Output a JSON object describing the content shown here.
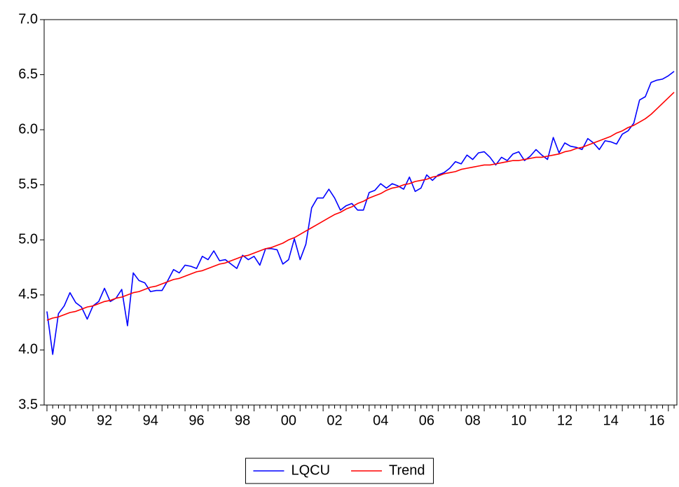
{
  "chart_data": {
    "type": "line",
    "categories": [
      null,
      null,
      "90",
      null,
      null,
      null,
      null,
      null,
      null,
      null,
      "92",
      null,
      null,
      null,
      null,
      null,
      null,
      null,
      "94",
      null,
      null,
      null,
      null,
      null,
      null,
      null,
      "96",
      null,
      null,
      null,
      null,
      null,
      null,
      null,
      "98",
      null,
      null,
      null,
      null,
      null,
      null,
      null,
      "00",
      null,
      null,
      null,
      null,
      null,
      null,
      null,
      "02",
      null,
      null,
      null,
      null,
      null,
      null,
      null,
      "04",
      null,
      null,
      null,
      null,
      null,
      null,
      null,
      "06",
      null,
      null,
      null,
      null,
      null,
      null,
      null,
      "08",
      null,
      null,
      null,
      null,
      null,
      null,
      null,
      "10",
      null,
      null,
      null,
      null,
      null,
      null,
      null,
      "12",
      null,
      null,
      null,
      null,
      null,
      null,
      null,
      "14",
      null,
      null,
      null,
      null,
      null,
      null,
      null,
      "16",
      null,
      null,
      null
    ],
    "series": [
      {
        "name": "LQCU",
        "color": "#0000ff",
        "values": [
          4.35,
          3.96,
          4.33,
          4.4,
          4.52,
          4.43,
          4.39,
          4.28,
          4.4,
          4.44,
          4.56,
          4.44,
          4.47,
          4.55,
          4.22,
          4.7,
          4.63,
          4.61,
          4.53,
          4.54,
          4.54,
          4.63,
          4.73,
          4.7,
          4.77,
          4.76,
          4.74,
          4.85,
          4.82,
          4.9,
          4.81,
          4.82,
          4.78,
          4.74,
          4.86,
          4.82,
          4.85,
          4.77,
          4.92,
          4.92,
          4.91,
          4.78,
          4.82,
          5.01,
          4.82,
          4.96,
          5.29,
          5.38,
          5.38,
          5.46,
          5.38,
          5.27,
          5.31,
          5.33,
          5.27,
          5.27,
          5.43,
          5.45,
          5.51,
          5.47,
          5.51,
          5.49,
          5.46,
          5.57,
          5.44,
          5.47,
          5.59,
          5.54,
          5.59,
          5.61,
          5.65,
          5.71,
          5.69,
          5.77,
          5.73,
          5.79,
          5.8,
          5.75,
          5.68,
          5.75,
          5.72,
          5.78,
          5.8,
          5.72,
          5.76,
          5.82,
          5.77,
          5.73,
          5.93,
          5.79,
          5.88,
          5.85,
          5.84,
          5.82,
          5.92,
          5.88,
          5.82,
          5.9,
          5.89,
          5.87,
          5.96,
          5.99,
          6.06,
          6.27,
          6.3,
          6.43,
          6.45,
          6.46,
          6.49,
          6.53
        ]
      },
      {
        "name": "Trend",
        "color": "#ff0000",
        "values": [
          4.27,
          4.29,
          4.3,
          4.32,
          4.34,
          4.35,
          4.37,
          4.39,
          4.4,
          4.42,
          4.44,
          4.45,
          4.47,
          4.48,
          4.5,
          4.52,
          4.53,
          4.55,
          4.57,
          4.58,
          4.6,
          4.62,
          4.64,
          4.65,
          4.67,
          4.69,
          4.71,
          4.72,
          4.74,
          4.76,
          4.78,
          4.79,
          4.81,
          4.83,
          4.85,
          4.86,
          4.88,
          4.9,
          4.92,
          4.93,
          4.95,
          4.97,
          5.0,
          5.02,
          5.05,
          5.08,
          5.11,
          5.14,
          5.17,
          5.2,
          5.23,
          5.25,
          5.28,
          5.3,
          5.33,
          5.35,
          5.38,
          5.4,
          5.42,
          5.45,
          5.47,
          5.48,
          5.5,
          5.51,
          5.53,
          5.54,
          5.55,
          5.57,
          5.58,
          5.6,
          5.61,
          5.62,
          5.64,
          5.65,
          5.66,
          5.67,
          5.68,
          5.68,
          5.69,
          5.7,
          5.71,
          5.72,
          5.72,
          5.73,
          5.74,
          5.75,
          5.75,
          5.76,
          5.77,
          5.78,
          5.8,
          5.81,
          5.83,
          5.84,
          5.86,
          5.88,
          5.9,
          5.92,
          5.94,
          5.97,
          5.99,
          6.02,
          6.04,
          6.07,
          6.1,
          6.14,
          6.19,
          6.24,
          6.29,
          6.34
        ]
      }
    ],
    "ylim": [
      3.5,
      7.0
    ],
    "yticks": [
      {
        "value": 3.5,
        "label": "3.5"
      },
      {
        "value": 4.0,
        "label": "4.0"
      },
      {
        "value": 4.5,
        "label": "4.5"
      },
      {
        "value": 5.0,
        "label": "5.0"
      },
      {
        "value": 5.5,
        "label": "5.5"
      },
      {
        "value": 6.0,
        "label": "6.0"
      },
      {
        "value": 6.5,
        "label": "6.5"
      },
      {
        "value": 7.0,
        "label": "7.0"
      }
    ],
    "grid": false,
    "legend": "bottom"
  }
}
